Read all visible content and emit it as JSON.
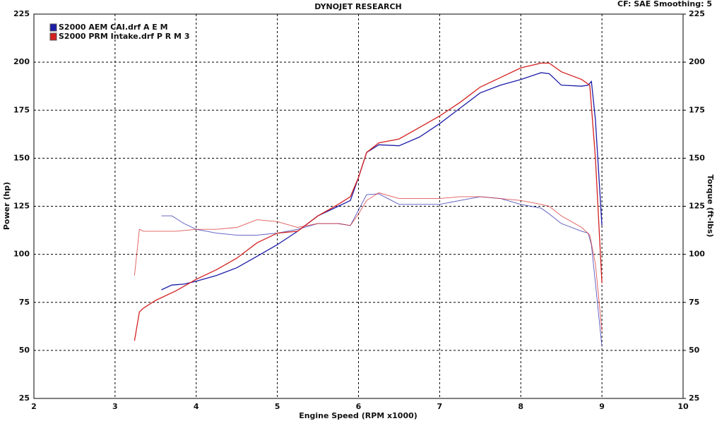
{
  "chart_data": {
    "type": "line",
    "title": "DYNOJET RESEARCH",
    "subtitle": "CF: SAE  Smoothing: 5",
    "xlabel": "Engine Speed (RPM x1000)",
    "ylabel": "Power (hp)",
    "y2label": "Torque (ft-lbs)",
    "xlim": [
      2,
      10
    ],
    "xticks": [
      2,
      3,
      4,
      5,
      6,
      7,
      8,
      9,
      10
    ],
    "ylim": [
      25,
      225
    ],
    "yticks": [
      25,
      50,
      75,
      100,
      125,
      150,
      175,
      200,
      225
    ],
    "y2lim": [
      25,
      225
    ],
    "y2ticks": [
      25,
      50,
      75,
      100,
      125,
      150,
      175,
      200,
      225
    ],
    "grid": true,
    "series": [
      {
        "name": "S2000 AEM CAI.drf A E M",
        "color": "#1c1ca8",
        "x": [
          3.57,
          3.7,
          3.85,
          4.0,
          4.25,
          4.5,
          4.75,
          5.0,
          5.25,
          5.5,
          5.75,
          5.9,
          6.0,
          6.1,
          6.25,
          6.5,
          6.75,
          7.0,
          7.25,
          7.5,
          7.75,
          8.0,
          8.25,
          8.35,
          8.5,
          8.75,
          8.83,
          8.87,
          8.92,
          9.0
        ],
        "power": [
          81.5,
          84,
          84.5,
          86,
          89,
          93,
          99,
          105,
          112,
          120,
          125,
          128,
          140,
          153,
          157,
          156.5,
          161,
          168,
          176,
          184,
          188,
          191,
          194.5,
          194,
          188,
          187.5,
          188,
          190,
          170,
          115
        ],
        "torque": [
          120,
          120,
          116,
          113,
          111,
          110,
          110,
          111,
          113,
          116,
          116,
          115,
          123,
          131,
          131.5,
          126,
          126,
          126,
          128,
          130,
          129,
          126,
          124,
          121,
          116,
          112,
          111,
          105,
          85,
          52
        ]
      },
      {
        "name": "S2000 PRM Intake.drf P R M 3",
        "color": "#d42020",
        "x": [
          3.24,
          3.3,
          3.35,
          3.5,
          3.75,
          4.0,
          4.25,
          4.5,
          4.75,
          5.0,
          5.25,
          5.5,
          5.75,
          5.9,
          6.0,
          6.1,
          6.25,
          6.5,
          6.75,
          7.0,
          7.25,
          7.5,
          7.75,
          8.0,
          8.25,
          8.35,
          8.5,
          8.75,
          8.85,
          8.92,
          9.0
        ],
        "power": [
          55,
          70,
          72,
          76,
          81,
          87,
          92,
          98,
          106,
          111,
          112,
          120,
          126,
          130,
          140,
          153,
          158,
          160,
          166,
          172,
          179,
          187,
          192,
          197,
          199.5,
          199.5,
          195,
          191,
          188,
          150,
          85
        ],
        "torque": [
          89,
          113,
          112,
          112,
          112,
          113,
          113,
          114,
          118,
          117,
          114,
          116,
          116,
          115,
          121,
          128,
          132,
          129,
          129,
          129,
          130,
          130,
          129,
          128,
          126,
          125,
          120,
          114,
          110,
          95,
          60
        ]
      }
    ]
  }
}
